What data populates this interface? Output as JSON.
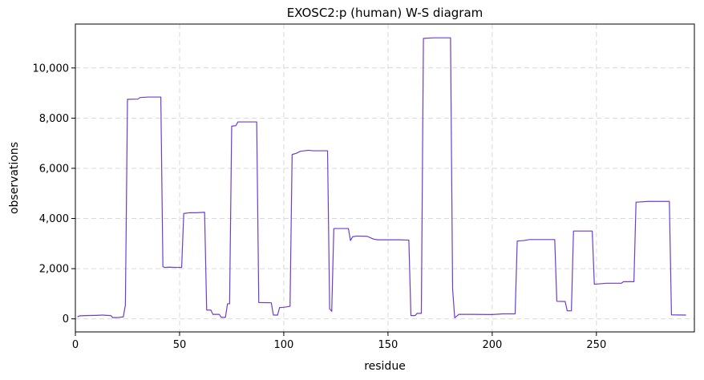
{
  "chart_data": {
    "type": "line",
    "title": "EXOSC2:p (human) W-S diagram",
    "xlabel": "residue",
    "ylabel": "observations",
    "xlim": [
      0,
      297
    ],
    "ylim": [
      -520,
      11750
    ],
    "x_ticks": [
      0,
      50,
      100,
      150,
      200,
      250
    ],
    "x_tick_labels": [
      "0",
      "50",
      "100",
      "150",
      "200",
      "250"
    ],
    "y_ticks": [
      0,
      2000,
      4000,
      6000,
      8000,
      10000
    ],
    "y_tick_labels": [
      "0",
      "2,000",
      "4,000",
      "6,000",
      "8,000",
      "10,000"
    ],
    "grid": true,
    "line_color": "#6a3fd0",
    "grid_color": "#d9d9d9",
    "series": [
      {
        "points": [
          [
            1,
            80
          ],
          [
            2,
            120
          ],
          [
            5,
            130
          ],
          [
            10,
            140
          ],
          [
            13,
            150
          ],
          [
            15,
            140
          ],
          [
            17,
            130
          ],
          [
            18,
            50
          ],
          [
            20,
            50
          ],
          [
            23,
            80
          ],
          [
            24,
            550
          ],
          [
            25,
            8750
          ],
          [
            30,
            8760
          ],
          [
            31,
            8820
          ],
          [
            35,
            8840
          ],
          [
            41,
            8840
          ],
          [
            42,
            2080
          ],
          [
            43,
            2050
          ],
          [
            45,
            2060
          ],
          [
            48,
            2050
          ],
          [
            50,
            2050
          ],
          [
            51,
            2050
          ],
          [
            52,
            4200
          ],
          [
            55,
            4230
          ],
          [
            58,
            4230
          ],
          [
            62,
            4250
          ],
          [
            63,
            350
          ],
          [
            65,
            350
          ],
          [
            66,
            180
          ],
          [
            69,
            180
          ],
          [
            70,
            60
          ],
          [
            72,
            60
          ],
          [
            73,
            600
          ],
          [
            74,
            600
          ],
          [
            75,
            7680
          ],
          [
            77,
            7700
          ],
          [
            78,
            7850
          ],
          [
            87,
            7850
          ],
          [
            88,
            650
          ],
          [
            94,
            640
          ],
          [
            95,
            150
          ],
          [
            97,
            150
          ],
          [
            98,
            450
          ],
          [
            100,
            460
          ],
          [
            103,
            500
          ],
          [
            104,
            6550
          ],
          [
            106,
            6600
          ],
          [
            108,
            6680
          ],
          [
            112,
            6720
          ],
          [
            114,
            6700
          ],
          [
            121,
            6700
          ],
          [
            122,
            400
          ],
          [
            123,
            300
          ],
          [
            124,
            3600
          ],
          [
            131,
            3600
          ],
          [
            132,
            3120
          ],
          [
            133,
            3270
          ],
          [
            135,
            3300
          ],
          [
            140,
            3290
          ],
          [
            143,
            3180
          ],
          [
            145,
            3150
          ],
          [
            150,
            3150
          ],
          [
            155,
            3150
          ],
          [
            160,
            3140
          ],
          [
            161,
            130
          ],
          [
            163,
            130
          ],
          [
            164,
            220
          ],
          [
            166,
            220
          ],
          [
            167,
            11180
          ],
          [
            172,
            11200
          ],
          [
            180,
            11200
          ],
          [
            181,
            1200
          ],
          [
            182,
            40
          ],
          [
            184,
            180
          ],
          [
            190,
            180
          ],
          [
            200,
            170
          ],
          [
            205,
            200
          ],
          [
            211,
            200
          ],
          [
            212,
            3100
          ],
          [
            215,
            3120
          ],
          [
            218,
            3160
          ],
          [
            226,
            3160
          ],
          [
            230,
            3160
          ],
          [
            231,
            700
          ],
          [
            235,
            690
          ],
          [
            236,
            320
          ],
          [
            238,
            320
          ],
          [
            239,
            3500
          ],
          [
            246,
            3500
          ],
          [
            248,
            3500
          ],
          [
            249,
            1380
          ],
          [
            255,
            1420
          ],
          [
            262,
            1420
          ],
          [
            263,
            1480
          ],
          [
            268,
            1480
          ],
          [
            269,
            4650
          ],
          [
            275,
            4680
          ],
          [
            285,
            4680
          ],
          [
            286,
            160
          ],
          [
            293,
            150
          ]
        ]
      }
    ]
  }
}
